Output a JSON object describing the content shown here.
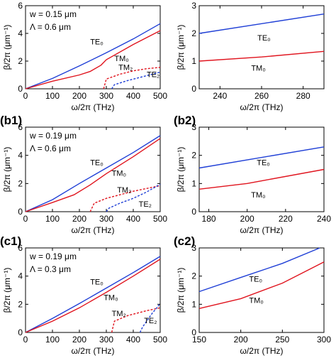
{
  "chart_data": [
    {
      "id": "a1",
      "type": "line",
      "panel_label": "",
      "xlabel": "ω/2π (THz)",
      "ylabel": "β/2π (μm⁻¹)",
      "xlim": [
        0,
        500
      ],
      "ylim": [
        0,
        6
      ],
      "xticks": [
        0,
        100,
        200,
        300,
        400,
        500
      ],
      "yticks": [
        0,
        2,
        4,
        6
      ],
      "params": [
        "w = 0.15 μm",
        "Λ = 0.6 μm"
      ],
      "series": [
        {
          "name": "TE₀",
          "color": "#1f3fd6",
          "dash": false,
          "label_at": [
            240,
            3.2
          ],
          "points": [
            [
              0,
              0
            ],
            [
              100,
              0.75
            ],
            [
              200,
              1.65
            ],
            [
              300,
              2.6
            ],
            [
              400,
              3.6
            ],
            [
              500,
              4.7
            ]
          ]
        },
        {
          "name": "TM₀",
          "color": "#e0141e",
          "dash": false,
          "label_at": [
            330,
            2.0
          ],
          "points": [
            [
              0,
              0
            ],
            [
              100,
              0.55
            ],
            [
              200,
              1.0
            ],
            [
              240,
              1.25
            ],
            [
              280,
              1.7
            ],
            [
              300,
              2.1
            ],
            [
              400,
              3.2
            ],
            [
              500,
              4.2
            ]
          ]
        },
        {
          "name": "TM₂",
          "color": "#e0141e",
          "dash": true,
          "label_at": [
            345,
            1.35
          ],
          "points": [
            [
              290,
              0
            ],
            [
              300,
              0.7
            ],
            [
              350,
              1.05
            ],
            [
              400,
              1.3
            ],
            [
              450,
              1.45
            ],
            [
              500,
              1.55
            ]
          ]
        },
        {
          "name": "TE₂",
          "color": "#1f3fd6",
          "dash": true,
          "label_at": [
            450,
            0.85
          ],
          "points": [
            [
              320,
              0
            ],
            [
              330,
              0.3
            ],
            [
              380,
              0.6
            ],
            [
              450,
              0.95
            ],
            [
              500,
              1.2
            ]
          ]
        }
      ]
    },
    {
      "id": "a2",
      "type": "line",
      "panel_label": "",
      "xlabel": "ω/2π (THz)",
      "ylabel": "β/2π (μm⁻¹)",
      "xlim": [
        230,
        290
      ],
      "ylim": [
        0,
        3
      ],
      "xticks": [
        240,
        260,
        280
      ],
      "yticks": [
        0,
        1,
        2,
        3
      ],
      "params": [],
      "series": [
        {
          "name": "TE₀",
          "color": "#1f3fd6",
          "dash": false,
          "label_at": [
            258,
            1.75
          ],
          "points": [
            [
              230,
              2.0
            ],
            [
              290,
              2.7
            ]
          ]
        },
        {
          "name": "TM₀",
          "color": "#e0141e",
          "dash": false,
          "label_at": [
            255,
            0.65
          ],
          "points": [
            [
              230,
              1.0
            ],
            [
              260,
              1.15
            ],
            [
              290,
              1.35
            ]
          ]
        }
      ]
    },
    {
      "id": "b1",
      "type": "line",
      "panel_label": "(b1)",
      "xlabel": "ω/2π (THz)",
      "ylabel": "β/2π (μm⁻¹)",
      "xlim": [
        0,
        500
      ],
      "ylim": [
        0,
        6
      ],
      "xticks": [
        0,
        100,
        200,
        300,
        400,
        500
      ],
      "yticks": [
        0,
        2,
        4,
        6
      ],
      "params": [
        "w = 0.19 μm",
        "Λ = 0.6 μm"
      ],
      "series": [
        {
          "name": "TE₀",
          "color": "#1f3fd6",
          "dash": false,
          "label_at": [
            240,
            3.3
          ],
          "points": [
            [
              0,
              0
            ],
            [
              100,
              0.85
            ],
            [
              200,
              2.0
            ],
            [
              300,
              3.1
            ],
            [
              400,
              4.2
            ],
            [
              500,
              5.4
            ]
          ]
        },
        {
          "name": "TM₀",
          "color": "#e0141e",
          "dash": false,
          "label_at": [
            320,
            2.55
          ],
          "points": [
            [
              0,
              0
            ],
            [
              100,
              0.65
            ],
            [
              180,
              1.2
            ],
            [
              240,
              1.9
            ],
            [
              300,
              2.7
            ],
            [
              400,
              3.9
            ],
            [
              500,
              5.2
            ]
          ]
        },
        {
          "name": "TM₂",
          "color": "#e0141e",
          "dash": true,
          "label_at": [
            340,
            1.35
          ],
          "points": [
            [
              240,
              0
            ],
            [
              255,
              0.6
            ],
            [
              300,
              0.95
            ],
            [
              350,
              1.2
            ],
            [
              400,
              1.45
            ],
            [
              450,
              1.65
            ],
            [
              500,
              1.85
            ]
          ]
        },
        {
          "name": "TE₂",
          "color": "#1f3fd6",
          "dash": true,
          "label_at": [
            420,
            0.35
          ],
          "points": [
            [
              300,
              0
            ],
            [
              310,
              0.25
            ],
            [
              350,
              0.6
            ],
            [
              400,
              0.95
            ],
            [
              450,
              1.4
            ],
            [
              500,
              1.95
            ]
          ]
        }
      ]
    },
    {
      "id": "b2",
      "type": "line",
      "panel_label": "(b2)",
      "xlabel": "ω/2π (THz)",
      "ylabel": "β/2π (μm⁻¹)",
      "xlim": [
        175,
        240
      ],
      "ylim": [
        0,
        3
      ],
      "xticks": [
        180,
        200,
        220,
        240
      ],
      "yticks": [
        0,
        1,
        2,
        3
      ],
      "params": [],
      "series": [
        {
          "name": "TE₀",
          "color": "#1f3fd6",
          "dash": false,
          "label_at": [
            205,
            1.65
          ],
          "points": [
            [
              175,
              1.55
            ],
            [
              240,
              2.3
            ]
          ]
        },
        {
          "name": "TM₀",
          "color": "#e0141e",
          "dash": false,
          "label_at": [
            202,
            0.5
          ],
          "points": [
            [
              175,
              0.8
            ],
            [
              200,
              1.0
            ],
            [
              240,
              1.5
            ]
          ]
        }
      ]
    },
    {
      "id": "c1",
      "type": "line",
      "panel_label": "(c1)",
      "xlabel": "ω/2π (THz)",
      "ylabel": "β/2π (μm⁻¹)",
      "xlim": [
        0,
        500
      ],
      "ylim": [
        0,
        6
      ],
      "xticks": [
        0,
        100,
        200,
        300,
        400,
        500
      ],
      "yticks": [
        0,
        2,
        4,
        6
      ],
      "params": [
        "w = 0.19 μm",
        "Λ = 0.3 μm"
      ],
      "series": [
        {
          "name": "TE₀",
          "color": "#1f3fd6",
          "dash": false,
          "label_at": [
            240,
            3.4
          ],
          "points": [
            [
              0,
              0
            ],
            [
              100,
              1.0
            ],
            [
              200,
              2.05
            ],
            [
              300,
              3.15
            ],
            [
              400,
              4.25
            ],
            [
              500,
              5.4
            ]
          ]
        },
        {
          "name": "TM₀",
          "color": "#e0141e",
          "dash": false,
          "label_at": [
            290,
            2.3
          ],
          "points": [
            [
              0,
              0
            ],
            [
              100,
              0.8
            ],
            [
              200,
              1.75
            ],
            [
              300,
              2.85
            ],
            [
              400,
              4.0
            ],
            [
              500,
              5.2
            ]
          ]
        },
        {
          "name": "TM₂",
          "color": "#e0141e",
          "dash": true,
          "label_at": [
            320,
            1.15
          ],
          "points": [
            [
              320,
              0
            ],
            [
              330,
              0.8
            ],
            [
              380,
              1.2
            ],
            [
              450,
              1.55
            ],
            [
              500,
              1.75
            ]
          ]
        },
        {
          "name": "TE₂",
          "color": "#1f3fd6",
          "dash": true,
          "label_at": [
            440,
            0.65
          ],
          "points": [
            [
              425,
              0
            ],
            [
              435,
              0.4
            ],
            [
              470,
              1.35
            ],
            [
              500,
              2.05
            ]
          ]
        }
      ]
    },
    {
      "id": "c2",
      "type": "line",
      "panel_label": "(c2)",
      "xlabel": "ω/2π (THz)",
      "ylabel": "β/2π (μm⁻¹)",
      "xlim": [
        150,
        300
      ],
      "ylim": [
        0,
        3
      ],
      "xticks": [
        150,
        200,
        250,
        300
      ],
      "yticks": [
        0,
        1,
        2,
        3
      ],
      "params": [],
      "series": [
        {
          "name": "TE₀",
          "color": "#1f3fd6",
          "dash": false,
          "label_at": [
            210,
            1.8
          ],
          "points": [
            [
              150,
              1.45
            ],
            [
              200,
              1.95
            ],
            [
              250,
              2.45
            ],
            [
              295,
              3.0
            ]
          ]
        },
        {
          "name": "TM₀",
          "color": "#e0141e",
          "dash": false,
          "label_at": [
            210,
            1.05
          ],
          "points": [
            [
              150,
              0.85
            ],
            [
              200,
              1.2
            ],
            [
              250,
              1.75
            ],
            [
              300,
              2.5
            ]
          ]
        }
      ]
    }
  ]
}
